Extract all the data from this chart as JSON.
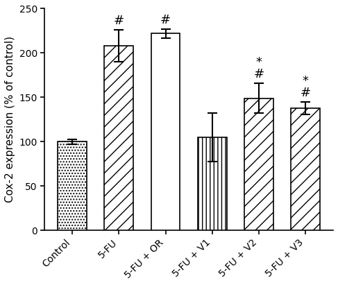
{
  "categories": [
    "Control",
    "5-FU",
    "5-FU + OR",
    "5-FU + V1",
    "5-FU + V2",
    "5-FU + V3"
  ],
  "values": [
    100,
    208,
    222,
    105,
    149,
    138
  ],
  "errors": [
    3,
    18,
    5,
    27,
    17,
    7
  ],
  "ylabel": "Cox-2 expression (% of control)",
  "ylim": [
    0,
    250
  ],
  "yticks": [
    0,
    50,
    100,
    150,
    200,
    250
  ],
  "bar_edge_color": "black",
  "bar_linewidth": 1.2,
  "error_color": "black",
  "error_linewidth": 1.5,
  "error_capsize": 5,
  "annotations": [
    {
      "bar": 0,
      "texts": []
    },
    {
      "bar": 1,
      "texts": [
        "#"
      ]
    },
    {
      "bar": 2,
      "texts": [
        "#"
      ]
    },
    {
      "bar": 3,
      "texts": []
    },
    {
      "bar": 4,
      "texts": [
        "*",
        "#"
      ]
    },
    {
      "bar": 5,
      "texts": [
        "*",
        "#"
      ]
    }
  ],
  "hatch_patterns": [
    "....",
    "////",
    "====",
    "||||",
    "////",
    "////"
  ],
  "background_color": "white",
  "fontsize_ticks": 10,
  "fontsize_ylabel": 11,
  "fontsize_annotation": 13,
  "bar_width": 0.62
}
